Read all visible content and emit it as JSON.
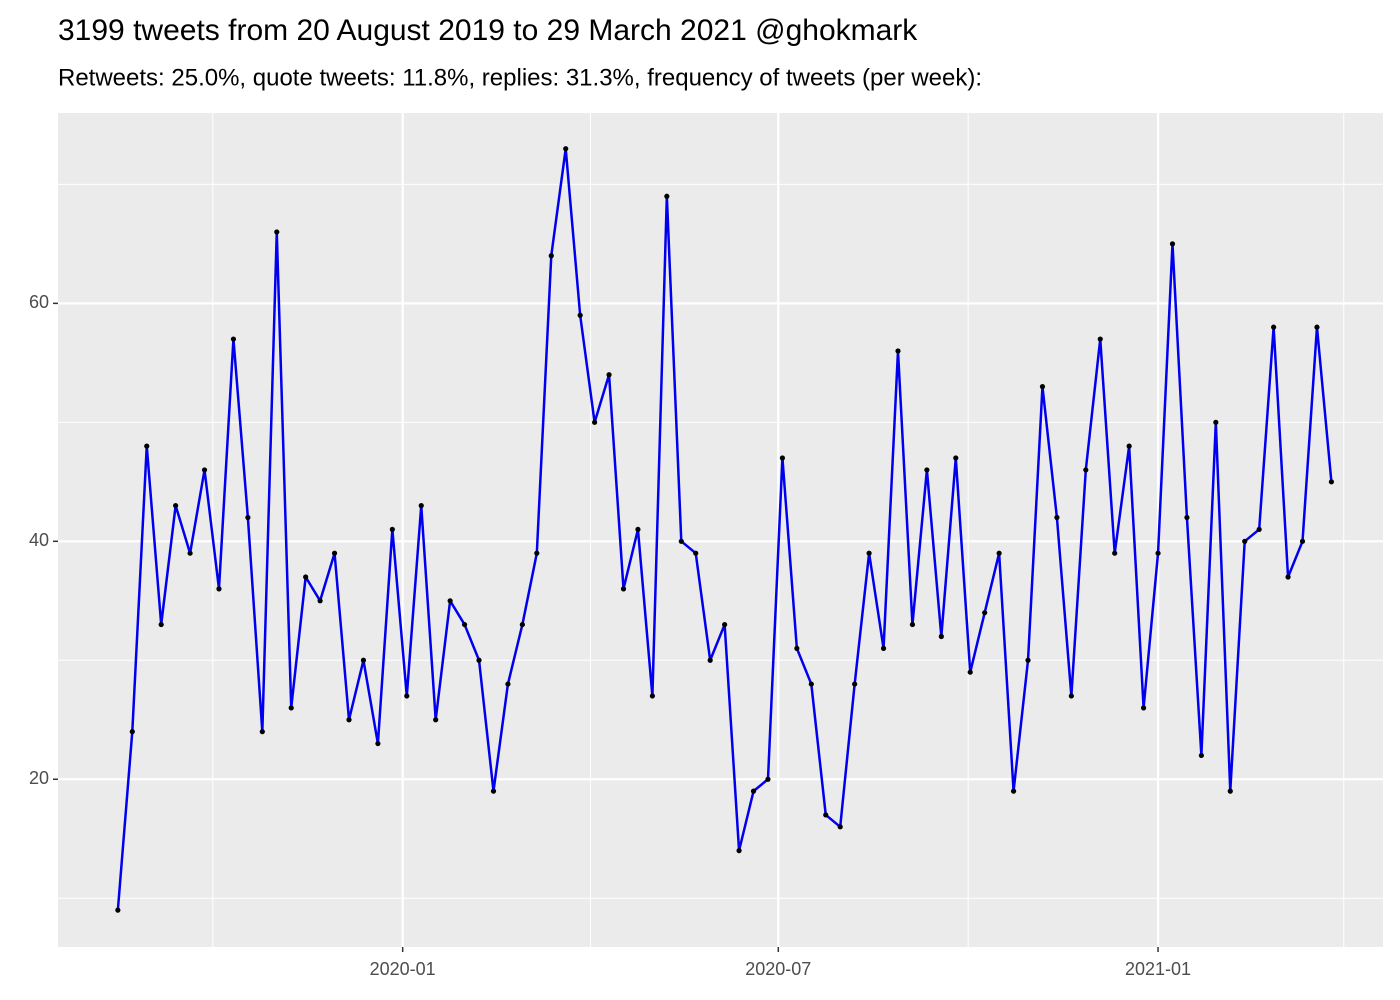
{
  "chart_data": {
    "type": "line",
    "title": "3199 tweets from 20 August 2019 to 29 March 2021 @ghokmark",
    "subtitle": "Retweets: 25.0%, quote tweets: 11.8%, replies: 31.3%, frequency of tweets (per week):",
    "x": [
      "2019-08-16",
      "2019-08-23",
      "2019-08-30",
      "2019-09-06",
      "2019-09-13",
      "2019-09-20",
      "2019-09-27",
      "2019-10-04",
      "2019-10-11",
      "2019-10-18",
      "2019-10-25",
      "2019-11-01",
      "2019-11-08",
      "2019-11-15",
      "2019-11-22",
      "2019-11-29",
      "2019-12-06",
      "2019-12-13",
      "2019-12-20",
      "2019-12-27",
      "2020-01-03",
      "2020-01-10",
      "2020-01-17",
      "2020-01-24",
      "2020-01-31",
      "2020-02-07",
      "2020-02-14",
      "2020-02-21",
      "2020-02-28",
      "2020-03-06",
      "2020-03-13",
      "2020-03-20",
      "2020-03-27",
      "2020-04-03",
      "2020-04-10",
      "2020-04-17",
      "2020-04-24",
      "2020-05-01",
      "2020-05-08",
      "2020-05-15",
      "2020-05-22",
      "2020-05-29",
      "2020-06-05",
      "2020-06-12",
      "2020-06-19",
      "2020-06-26",
      "2020-07-03",
      "2020-07-10",
      "2020-07-17",
      "2020-07-24",
      "2020-07-31",
      "2020-08-07",
      "2020-08-14",
      "2020-08-21",
      "2020-08-28",
      "2020-09-04",
      "2020-09-11",
      "2020-09-18",
      "2020-09-25",
      "2020-10-02",
      "2020-10-09",
      "2020-10-16",
      "2020-10-23",
      "2020-10-30",
      "2020-11-06",
      "2020-11-13",
      "2020-11-20",
      "2020-11-27",
      "2020-12-04",
      "2020-12-11",
      "2020-12-18",
      "2020-12-25",
      "2021-01-01",
      "2021-01-08",
      "2021-01-15",
      "2021-01-22",
      "2021-01-29",
      "2021-02-05",
      "2021-02-12",
      "2021-02-19",
      "2021-02-26",
      "2021-03-05",
      "2021-03-12",
      "2021-03-19",
      "2021-03-26"
    ],
    "values": [
      9,
      24,
      48,
      33,
      43,
      39,
      46,
      36,
      57,
      42,
      24,
      66,
      26,
      37,
      35,
      39,
      25,
      30,
      23,
      41,
      27,
      43,
      25,
      35,
      33,
      30,
      19,
      28,
      33,
      39,
      64,
      73,
      59,
      50,
      54,
      36,
      41,
      27,
      69,
      40,
      39,
      30,
      33,
      14,
      19,
      20,
      47,
      31,
      28,
      17,
      16,
      28,
      39,
      31,
      56,
      33,
      46,
      32,
      47,
      29,
      34,
      39,
      19,
      30,
      53,
      42,
      27,
      46,
      57,
      39,
      48,
      26,
      39,
      65,
      42,
      22,
      50,
      19,
      40,
      41,
      58,
      37,
      40,
      58,
      45
    ],
    "color": "#0000ee",
    "point_color": "#000000",
    "xlim": [
      "2019-07-18",
      "2021-04-20"
    ],
    "xticks": [
      {
        "value": "2020-01-01",
        "label": "2020-01"
      },
      {
        "value": "2020-07-01",
        "label": "2020-07"
      },
      {
        "value": "2021-01-01",
        "label": "2021-01"
      }
    ],
    "xminorticks": [
      "2019-10-01",
      "2020-04-01",
      "2020-10-01",
      "2021-04-01"
    ],
    "ylim": [
      5.9,
      76
    ],
    "yticks": [
      20,
      40,
      60
    ],
    "yminorticks": [
      10,
      30,
      50,
      70
    ],
    "grid": true
  }
}
